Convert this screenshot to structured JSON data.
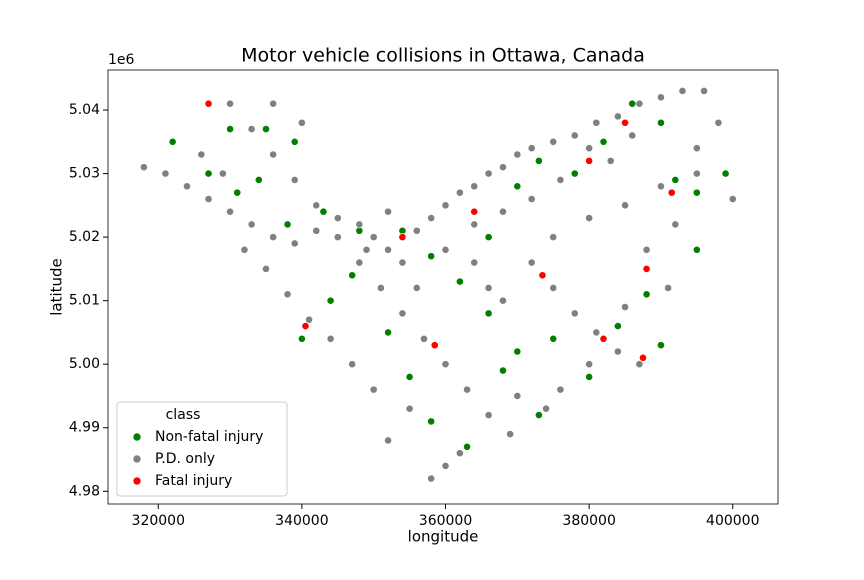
{
  "chart_data": {
    "type": "scatter",
    "title": "Motor vehicle collisions in Ottawa, Canada",
    "xlabel": "longitude",
    "ylabel": "latitude",
    "y_offset_label": "1e6",
    "legend_title": "class",
    "legend": "lower left",
    "xlim": [
      313000,
      406300
    ],
    "ylim": [
      4.978,
      5.0463
    ],
    "xticks": [
      320000,
      340000,
      360000,
      380000,
      400000
    ],
    "yticks": [
      4.98,
      4.99,
      {
        "value": 5,
        "label": "5.00"
      },
      5.01,
      5.02,
      5.03,
      5.04
    ],
    "series": [
      {
        "name": "Non-fatal injury",
        "color": "#008000",
        "x": [
          322000,
          327000,
          331000,
          335000,
          339000,
          343000,
          347000,
          352000,
          355000,
          358000,
          363000,
          366000,
          370000,
          373000,
          378000,
          382000,
          386000,
          390000,
          392000,
          395000,
          399000,
          388000,
          384000,
          380000,
          375000,
          370000,
          366000,
          362000,
          358000,
          354000,
          348000,
          344000,
          340000,
          338000,
          330000,
          334000,
          373000,
          368000,
          395000,
          390000
        ],
        "y": [
          5.035,
          5.03,
          5.027,
          5.037,
          5.035,
          5.024,
          5.014,
          5.005,
          4.998,
          4.991,
          4.987,
          5.02,
          5.028,
          5.032,
          5.03,
          5.035,
          5.041,
          5.038,
          5.029,
          5.027,
          5.03,
          5.011,
          5.006,
          4.998,
          5.004,
          5.002,
          5.008,
          5.013,
          5.017,
          5.021,
          5.021,
          5.01,
          5.004,
          5.022,
          5.037,
          5.029,
          4.992,
          4.999,
          5.018,
          5.003
        ]
      },
      {
        "name": "P.D. only",
        "color": "#808080",
        "x": [
          318000,
          321000,
          324000,
          327000,
          330000,
          333000,
          336000,
          339000,
          342000,
          345000,
          348000,
          350000,
          352000,
          354000,
          356000,
          358000,
          360000,
          362000,
          364000,
          366000,
          368000,
          370000,
          372000,
          375000,
          378000,
          381000,
          384000,
          387000,
          390000,
          393000,
          396000,
          330000,
          333000,
          336000,
          339000,
          342000,
          345000,
          348000,
          351000,
          354000,
          357000,
          360000,
          363000,
          366000,
          369000,
          358000,
          360000,
          362000,
          355000,
          352000,
          350000,
          347000,
          344000,
          341000,
          338000,
          335000,
          332000,
          375000,
          378000,
          381000,
          384000,
          387000,
          372000,
          375000,
          380000,
          385000,
          390000,
          395000,
          400000,
          392000,
          388000,
          391000,
          385000,
          380000,
          376000,
          370000,
          374000,
          366000,
          364000,
          368000,
          372000,
          376000,
          383000,
          386000,
          380000,
          352000,
          349000,
          356000,
          360000,
          364000,
          368000,
          398000,
          395000,
          340000,
          336000,
          326000,
          329000
        ],
        "y": [
          5.031,
          5.03,
          5.028,
          5.026,
          5.024,
          5.022,
          5.02,
          5.019,
          5.021,
          5.023,
          5.022,
          5.02,
          5.018,
          5.016,
          5.021,
          5.023,
          5.025,
          5.027,
          5.028,
          5.03,
          5.031,
          5.033,
          5.034,
          5.035,
          5.036,
          5.038,
          5.039,
          5.041,
          5.042,
          5.043,
          5.043,
          5.041,
          5.037,
          5.033,
          5.029,
          5.025,
          5.02,
          5.016,
          5.012,
          5.008,
          5.004,
          5.0,
          4.996,
          4.992,
          4.989,
          4.982,
          4.984,
          4.986,
          4.993,
          4.988,
          4.996,
          5.0,
          5.004,
          5.007,
          5.011,
          5.015,
          5.018,
          5.012,
          5.008,
          5.005,
          5.002,
          5.0,
          5.016,
          5.02,
          5.023,
          5.025,
          5.028,
          5.03,
          5.026,
          5.022,
          5.018,
          5.012,
          5.009,
          5.0,
          4.996,
          4.995,
          4.993,
          5.012,
          5.016,
          5.01,
          5.026,
          5.029,
          5.032,
          5.036,
          5.034,
          5.024,
          5.018,
          5.012,
          5.018,
          5.022,
          5.024,
          5.038,
          5.034,
          5.038,
          5.041,
          5.033,
          5.03
        ]
      },
      {
        "name": "Fatal injury",
        "color": "#ff0000",
        "x": [
          327000,
          340500,
          358500,
          373500,
          380000,
          385000,
          388000,
          391500,
          387500,
          382000,
          354000,
          364000
        ],
        "y": [
          5.041,
          5.006,
          5.003,
          5.014,
          5.032,
          5.038,
          5.015,
          5.027,
          5.001,
          5.004,
          5.02,
          5.024
        ]
      }
    ]
  }
}
